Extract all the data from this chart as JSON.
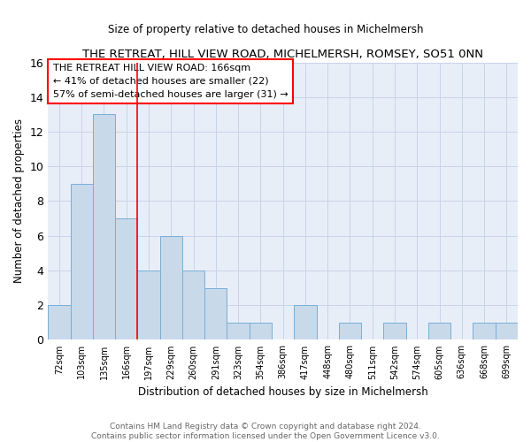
{
  "title": "THE RETREAT, HILL VIEW ROAD, MICHELMERSH, ROMSEY, SO51 0NN",
  "subtitle": "Size of property relative to detached houses in Michelmersh",
  "xlabel": "Distribution of detached houses by size in Michelmersh",
  "ylabel": "Number of detached properties",
  "categories": [
    "72sqm",
    "103sqm",
    "135sqm",
    "166sqm",
    "197sqm",
    "229sqm",
    "260sqm",
    "291sqm",
    "323sqm",
    "354sqm",
    "386sqm",
    "417sqm",
    "448sqm",
    "480sqm",
    "511sqm",
    "542sqm",
    "574sqm",
    "605sqm",
    "636sqm",
    "668sqm",
    "699sqm"
  ],
  "values": [
    2,
    9,
    13,
    7,
    4,
    6,
    4,
    3,
    1,
    1,
    0,
    2,
    0,
    1,
    0,
    1,
    0,
    1,
    0,
    1,
    1
  ],
  "bar_color": "#c8d9ea",
  "bar_edge_color": "#7aaed6",
  "red_line_index": 3.5,
  "ylim": [
    0,
    16
  ],
  "yticks": [
    0,
    2,
    4,
    6,
    8,
    10,
    12,
    14,
    16
  ],
  "annotation_title": "THE RETREAT HILL VIEW ROAD: 166sqm",
  "annotation_line1": "← 41% of detached houses are smaller (22)",
  "annotation_line2": "57% of semi-detached houses are larger (31) →",
  "footer1": "Contains HM Land Registry data © Crown copyright and database right 2024.",
  "footer2": "Contains public sector information licensed under the Open Government Licence v3.0.",
  "bg_color": "#ffffff",
  "grid_color": "#c8d4e8",
  "axes_bg_color": "#e8eef8"
}
